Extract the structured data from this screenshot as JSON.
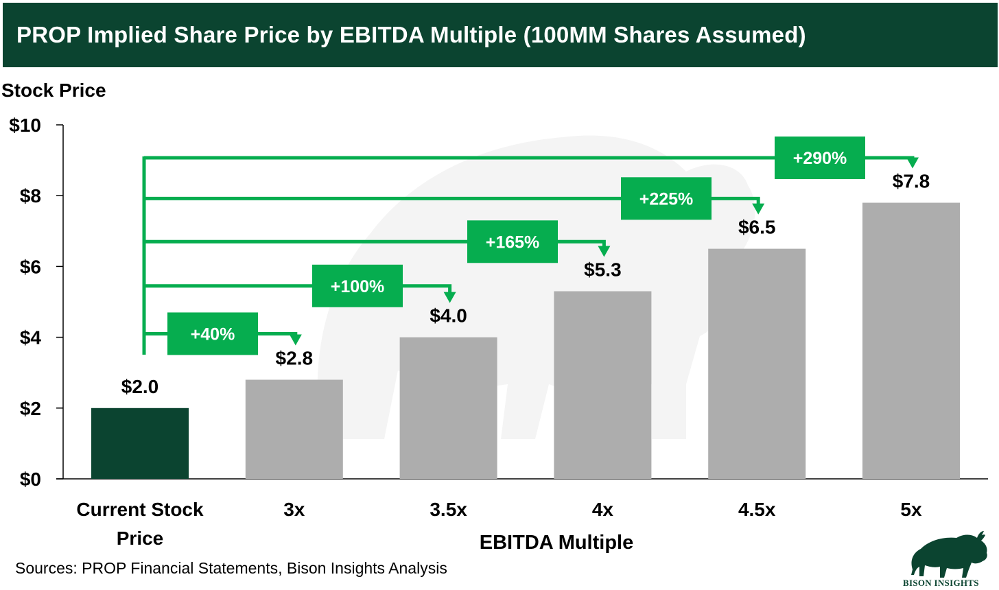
{
  "header": {
    "title": "PROP Implied Share Price by EBITDA Multiple (100MM Shares Assumed)"
  },
  "footer": {
    "source": "Sources: PROP Financial Statements, Bison Insights Analysis",
    "logo_text": "BISON INSIGHTS",
    "logo_icon": "bison-icon"
  },
  "colors": {
    "header_bg": "#0b4430",
    "current_bar": "#0b4430",
    "multiple_bar": "#adadad",
    "annotation_green": "#06ad4f",
    "watermark": "#f4f4f4"
  },
  "chart_data": {
    "type": "bar",
    "title": "PROP Implied Share Price by EBITDA Multiple (100MM Shares Assumed)",
    "xlabel": "EBITDA Multiple",
    "ylabel": "Stock Price",
    "ylim": [
      0,
      10
    ],
    "yticks": [
      0,
      2,
      4,
      6,
      8,
      10
    ],
    "ytick_labels": [
      "$0",
      "$2",
      "$4",
      "$6",
      "$8",
      "$10"
    ],
    "grid": false,
    "legend": "none",
    "categories": [
      "Current Stock Price",
      "3x",
      "3.5x",
      "4x",
      "4.5x",
      "5x"
    ],
    "category_lines": [
      [
        "Current Stock",
        "Price"
      ],
      [
        "3x"
      ],
      [
        "3.5x"
      ],
      [
        "4x"
      ],
      [
        "4.5x"
      ],
      [
        "5x"
      ]
    ],
    "values": [
      2.0,
      2.8,
      4.0,
      5.3,
      6.5,
      7.8
    ],
    "value_labels": [
      "$2.0",
      "$2.8",
      "$4.0",
      "$5.3",
      "$6.5",
      "$7.8"
    ],
    "highlight_index": 0,
    "annotations": [
      {
        "label": "+40%",
        "from": "Current Stock Price",
        "to": "3x",
        "level": 4.1
      },
      {
        "label": "+100%",
        "from": "Current Stock Price",
        "to": "3.5x",
        "level": 5.45
      },
      {
        "label": "+165%",
        "from": "Current Stock Price",
        "to": "4x",
        "level": 6.7
      },
      {
        "label": "+225%",
        "from": "Current Stock Price",
        "to": "4.5x",
        "level": 7.92
      },
      {
        "label": "+290%",
        "from": "Current Stock Price",
        "to": "5x",
        "level": 9.07
      }
    ]
  }
}
